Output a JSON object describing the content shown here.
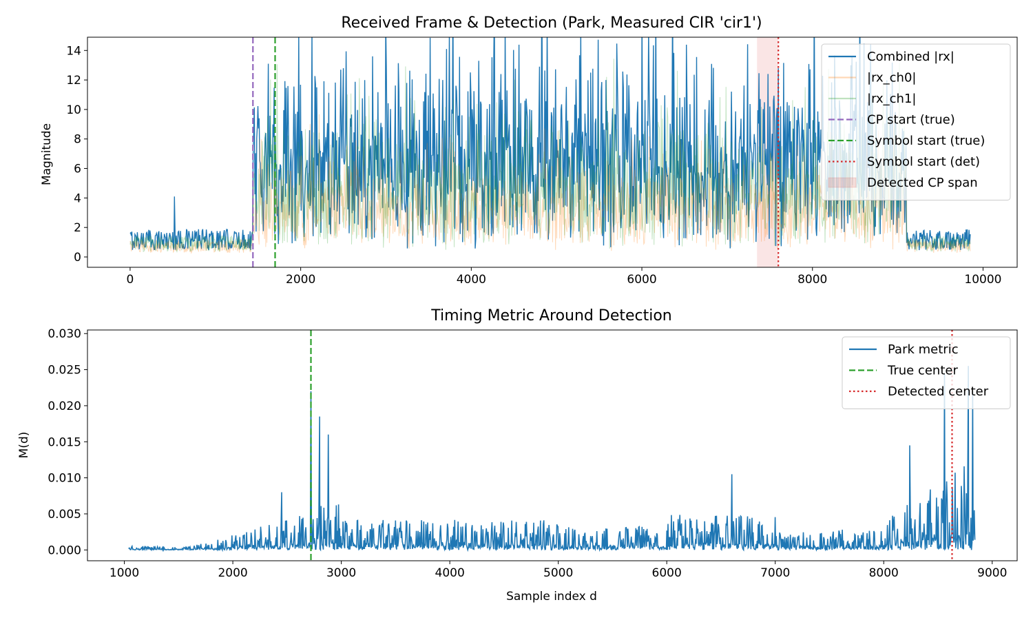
{
  "chart_data": [
    {
      "type": "line",
      "title": "Received Frame & Detection (Park, Measured CIR 'cir1')",
      "xlabel": "",
      "ylabel": "Magnitude",
      "xlim": [
        -500,
        10400
      ],
      "ylim": [
        -0.7,
        14.9
      ],
      "x_ticks": [
        0,
        2000,
        4000,
        6000,
        8000,
        10000
      ],
      "y_ticks": [
        0,
        2,
        4,
        6,
        8,
        10,
        12,
        14
      ],
      "grid": false,
      "legend_position": "upper right",
      "signal": {
        "length": 9850,
        "noise_region": [
          0,
          1440
        ],
        "frame_region": [
          1440,
          9100
        ],
        "tail_region": [
          9100,
          9850
        ],
        "peak_samples": [
          {
            "x": 520,
            "y": 4.1
          },
          {
            "x": 1620,
            "y": 13.1
          },
          {
            "x": 2500,
            "y": 12.8
          },
          {
            "x": 3710,
            "y": 14.1
          },
          {
            "x": 4800,
            "y": 12.9
          },
          {
            "x": 5400,
            "y": 12.5
          },
          {
            "x": 7600,
            "y": 12.8
          },
          {
            "x": 8450,
            "y": 13.0
          }
        ]
      },
      "series": [
        {
          "name": "Combined |rx|",
          "color": "#1f77b4",
          "style": "solid",
          "typical_noise_level": 1.3,
          "typical_frame_level": 4.5
        },
        {
          "name": "|rx_ch0|",
          "color": "#ff7f0e",
          "style": "solid",
          "alpha": 0.3,
          "typical_noise_level": 0.8,
          "typical_frame_level": 2.5
        },
        {
          "name": "|rx_ch1|",
          "color": "#2ca02c",
          "style": "solid",
          "alpha": 0.3,
          "typical_noise_level": 1.0,
          "typical_frame_level": 3.5
        }
      ],
      "vlines": [
        {
          "name": "CP start (true)",
          "x": 1440,
          "color": "#9467bd",
          "style": "dashed"
        },
        {
          "name": "Symbol start (true)",
          "x": 1700,
          "color": "#2ca02c",
          "style": "dashed"
        },
        {
          "name": "Symbol start (det)",
          "x": 7600,
          "color": "#d62728",
          "style": "dotted"
        }
      ],
      "spans": [
        {
          "name": "Detected CP span",
          "x0": 7350,
          "x1": 7600,
          "color": "#d62728",
          "alpha": 0.12
        }
      ],
      "legend": [
        "Combined |rx|",
        "|rx_ch0|",
        "|rx_ch1|",
        "CP start (true)",
        "Symbol start (true)",
        "Symbol start (det)",
        "Detected CP span"
      ]
    },
    {
      "type": "line",
      "title": "Timing Metric Around Detection",
      "xlabel": "Sample index d",
      "ylabel": "M(d)",
      "xlim": [
        660,
        9230
      ],
      "ylim": [
        -0.0015,
        0.0305
      ],
      "x_ticks": [
        1000,
        2000,
        3000,
        4000,
        5000,
        6000,
        7000,
        8000,
        9000
      ],
      "y_ticks": [
        0.0,
        0.005,
        0.01,
        0.015,
        0.02,
        0.025,
        0.03
      ],
      "y_tick_labels": [
        "0.000",
        "0.005",
        "0.010",
        "0.015",
        "0.020",
        "0.025",
        "0.030"
      ],
      "grid": false,
      "legend_position": "upper right",
      "signal": {
        "x_start": 1040,
        "x_end": 8840,
        "peak_samples": [
          {
            "x": 2720,
            "y": 0.022
          },
          {
            "x": 2800,
            "y": 0.0185
          },
          {
            "x": 2880,
            "y": 0.016
          },
          {
            "x": 2450,
            "y": 0.008
          },
          {
            "x": 6600,
            "y": 0.0105
          },
          {
            "x": 8240,
            "y": 0.0145
          },
          {
            "x": 8560,
            "y": 0.0245
          },
          {
            "x": 8780,
            "y": 0.0255
          },
          {
            "x": 8820,
            "y": 0.022
          }
        ]
      },
      "series": [
        {
          "name": "Park metric",
          "color": "#1f77b4",
          "style": "solid"
        }
      ],
      "vlines": [
        {
          "name": "True center",
          "x": 2720,
          "color": "#2ca02c",
          "style": "dashed"
        },
        {
          "name": "Detected center",
          "x": 8630,
          "color": "#d62728",
          "style": "dotted"
        }
      ],
      "legend": [
        "Park metric",
        "True center",
        "Detected center"
      ]
    }
  ]
}
